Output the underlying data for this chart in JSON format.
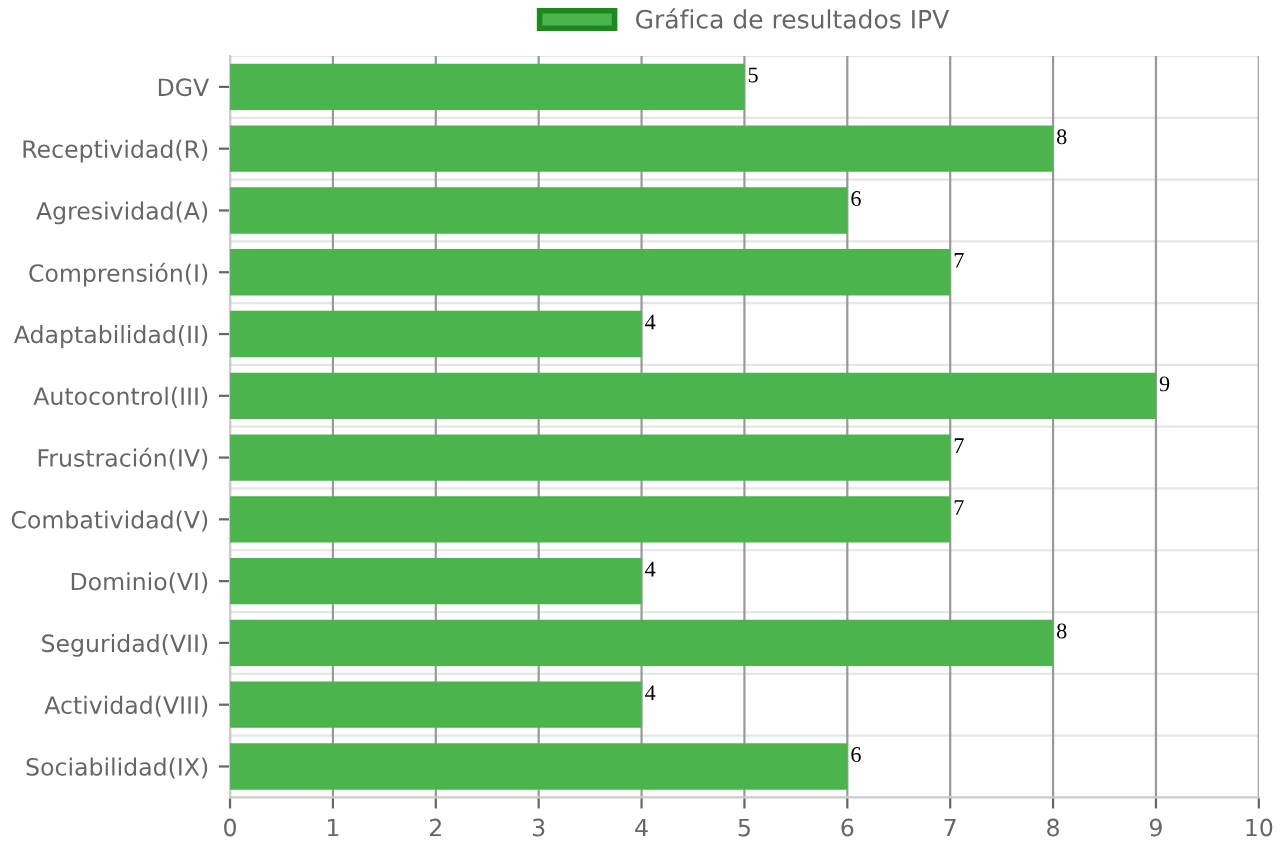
{
  "chart_data": {
    "type": "bar",
    "orientation": "horizontal",
    "categories": [
      "DGV",
      "Receptividad(R)",
      "Agresividad(A)",
      "Comprensión(I)",
      "Adaptabilidad(II)",
      "Autocontrol(III)",
      "Frustración(IV)",
      "Combatividad(V)",
      "Dominio(VI)",
      "Seguridad(VII)",
      "Actividad(VIII)",
      "Sociabilidad(IX)"
    ],
    "series": [
      {
        "name": "Gráfica de resultados IPV",
        "color": "#4cb44c",
        "values": [
          5,
          8,
          6,
          7,
          4,
          9,
          7,
          7,
          4,
          8,
          4,
          6
        ]
      }
    ],
    "xlim": [
      0,
      10
    ],
    "xticks": [
      0,
      1,
      2,
      3,
      4,
      5,
      6,
      7,
      8,
      9,
      10
    ],
    "grid": true,
    "legend": "top",
    "data_labels": true
  }
}
